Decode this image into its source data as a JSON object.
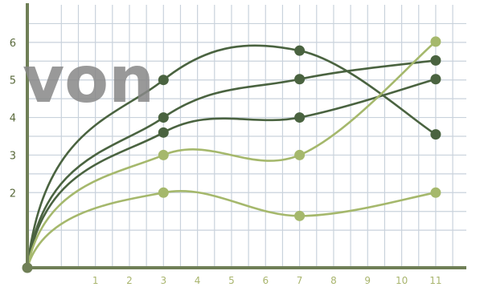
{
  "watermark": "von",
  "chart_data": {
    "type": "line",
    "x_ticks": [
      1,
      2,
      3,
      4,
      5,
      6,
      7,
      8,
      9,
      10,
      11
    ],
    "y_ticks": [
      2,
      3,
      4,
      5,
      6
    ],
    "xlim": [
      -1,
      11.9
    ],
    "ylim": [
      0,
      7
    ],
    "grid": true,
    "axis_color": "#6f7f56",
    "grid_color": "#c9d2dc",
    "series": [
      {
        "color": "#4a6340",
        "points": [
          [
            -1,
            0
          ],
          [
            3,
            5.0
          ],
          [
            7,
            5.78
          ],
          [
            11,
            3.55
          ]
        ]
      },
      {
        "color": "#4a6340",
        "points": [
          [
            -1,
            0
          ],
          [
            3,
            4.0
          ],
          [
            7,
            5.02
          ],
          [
            11,
            5.52
          ]
        ]
      },
      {
        "color": "#4a6340",
        "points": [
          [
            -1,
            0
          ],
          [
            3,
            3.6
          ],
          [
            7,
            4.0
          ],
          [
            11,
            5.02
          ]
        ]
      },
      {
        "color": "#a5b86c",
        "points": [
          [
            -1,
            0
          ],
          [
            3,
            3.0
          ],
          [
            7,
            3.0
          ],
          [
            11,
            6.02
          ]
        ]
      },
      {
        "color": "#a5b86c",
        "points": [
          [
            -1,
            0
          ],
          [
            3,
            2.0
          ],
          [
            7,
            1.38
          ],
          [
            11,
            2.0
          ]
        ]
      }
    ]
  }
}
